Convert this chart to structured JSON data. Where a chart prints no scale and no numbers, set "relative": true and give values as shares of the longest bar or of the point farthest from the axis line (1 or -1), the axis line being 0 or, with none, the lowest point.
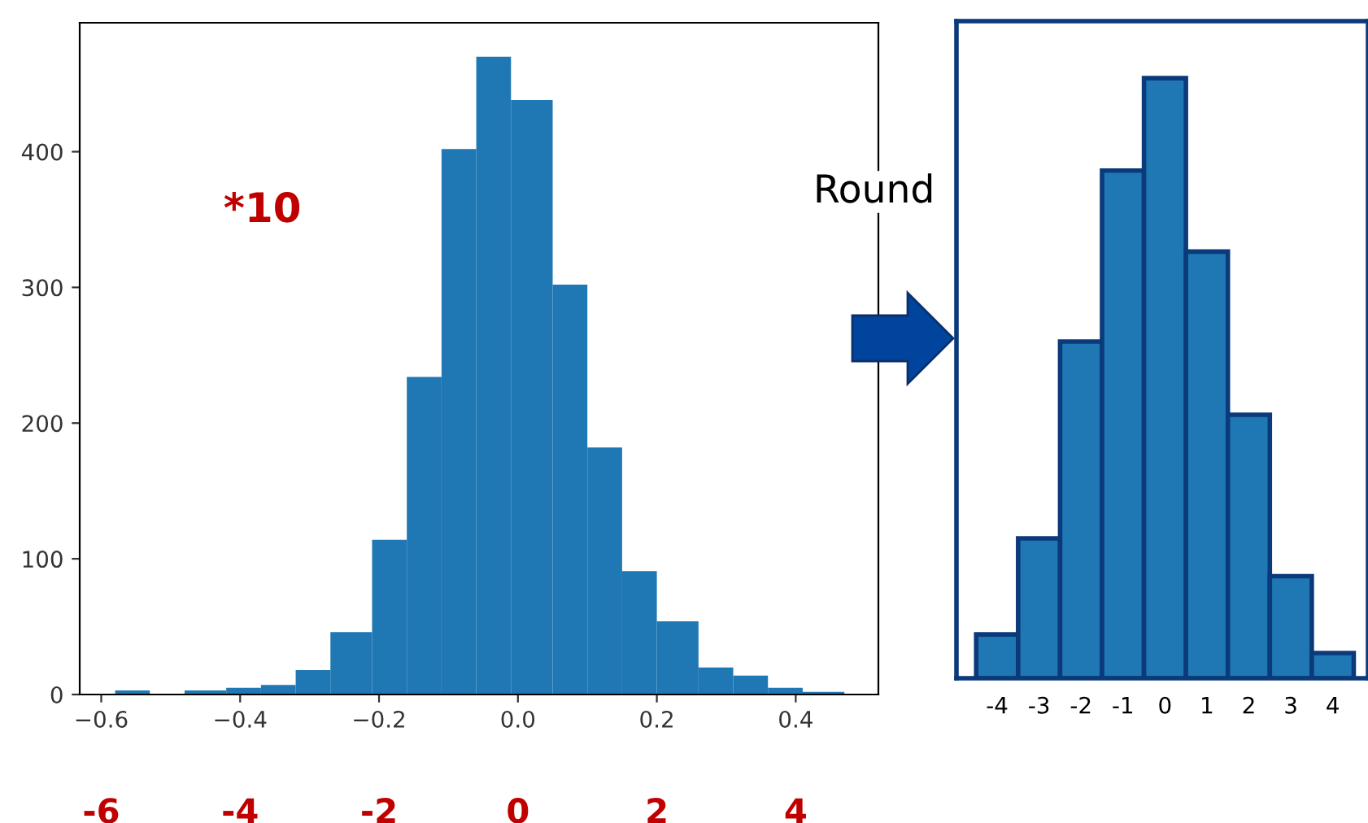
{
  "chart_data": [
    {
      "type": "histogram",
      "bins": [
        -0.58,
        -0.53,
        -0.48,
        -0.42,
        -0.37,
        -0.32,
        -0.27,
        -0.21,
        -0.16,
        -0.11,
        -0.06,
        -0.01,
        0.05,
        0.1,
        0.15,
        0.2,
        0.26,
        0.31,
        0.36,
        0.41,
        0.47
      ],
      "values": [
        3,
        0,
        3,
        5,
        7,
        18,
        46,
        114,
        234,
        402,
        470,
        438,
        302,
        182,
        91,
        54,
        20,
        14,
        5,
        2
      ],
      "color": "#1f77b4",
      "xlim": [
        -0.631,
        0.519
      ],
      "xticks": [
        {
          "value": -0.6,
          "label": "−0.6"
        },
        {
          "value": -0.4,
          "label": "−0.4"
        },
        {
          "value": -0.2,
          "label": "−0.2"
        },
        {
          "value": 0,
          "label": "0.0"
        },
        {
          "value": 0.2,
          "label": "0.2"
        },
        {
          "value": 0.4,
          "label": "0.4"
        }
      ],
      "ylim": [
        0,
        495
      ],
      "yticks": [
        0,
        100,
        200,
        300,
        400
      ],
      "x2lim": [
        -6.31,
        5.19
      ],
      "x2ticks": [
        -6,
        -4,
        -2,
        0,
        2,
        4
      ],
      "annotations": [
        "*10"
      ]
    },
    {
      "type": "bar",
      "relative": true,
      "categories": [
        "-4",
        "-3",
        "-2",
        "-1",
        "0",
        "1",
        "2",
        "3",
        "4"
      ],
      "values": [
        0.073,
        0.233,
        0.561,
        0.846,
        1,
        0.711,
        0.439,
        0.17,
        0.042
      ],
      "color": "#1f77b4",
      "annotations": [
        "Round"
      ]
    }
  ]
}
